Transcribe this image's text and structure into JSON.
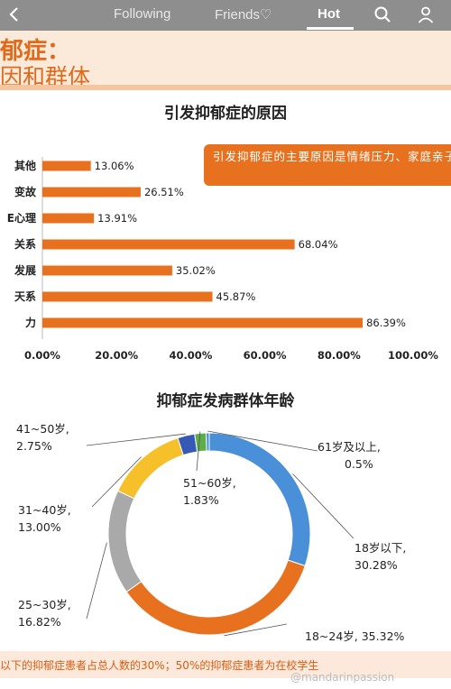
{
  "nav": {
    "tabs": [
      {
        "label": "Following"
      },
      {
        "label": "Friends♡"
      },
      {
        "label": "Hot"
      }
    ],
    "icons": [
      "search-icon",
      "profile-icon",
      "back-icon"
    ]
  },
  "header": {
    "title": "郁症：",
    "subtitle": "因和群体"
  },
  "callout": {
    "text": "引发抑郁症的主要原因是情绪压力、家庭亲子关系、亲密关系、职业发展"
  },
  "footer": {
    "text": "以下的抑郁症患者占总人数的30%；50%的抑郁症患者为在校学生",
    "watermark": "@mandarinpassion"
  },
  "colors": {
    "bar": "#e8711f",
    "accent": "#e06a1b",
    "donut": [
      "#4a90d9",
      "#e8711f",
      "#a9a9a9",
      "#f5c02a",
      "#3559b5",
      "#5dae4a"
    ]
  },
  "chart_data": [
    {
      "type": "bar",
      "orientation": "horizontal",
      "title": "引发抑郁症的原因",
      "categories": [
        "其他",
        "变故",
        "E心理",
        "关系",
        "发展",
        "天系",
        "力"
      ],
      "values": [
        13.06,
        26.51,
        13.91,
        68.04,
        35.02,
        45.87,
        86.39
      ],
      "value_labels": [
        "13.06%",
        "26.51%",
        "13.91%",
        "68.04%",
        "35.02%",
        "45.87%",
        "86.39%"
      ],
      "xlim": [
        0,
        100
      ],
      "xticks": [
        "0.00%",
        "20.00%",
        "40.00%",
        "60.00%",
        "80.00%",
        "100.00%"
      ],
      "tick_values": [
        0,
        20,
        40,
        60,
        80,
        100
      ],
      "grid": false
    },
    {
      "type": "pie",
      "donut": true,
      "title": "抑郁症发病群体年龄",
      "slices": [
        {
          "label": "18岁以下,",
          "pct_label": "30.28%",
          "value": 30.28
        },
        {
          "label": "18~24岁,",
          "pct_label": "35.32%",
          "value": 35.32
        },
        {
          "label": "25~30岁,",
          "pct_label": "16.82%",
          "value": 16.82
        },
        {
          "label": "31~40岁,",
          "pct_label": "13.00%",
          "value": 13.0
        },
        {
          "label": "41~50岁,",
          "pct_label": "2.75%",
          "value": 2.75
        },
        {
          "label": "51~60岁,",
          "pct_label": "1.83%",
          "value": 1.83
        },
        {
          "label": "61岁及以上,",
          "pct_label": "0.5%",
          "value": 0.5
        }
      ]
    }
  ]
}
